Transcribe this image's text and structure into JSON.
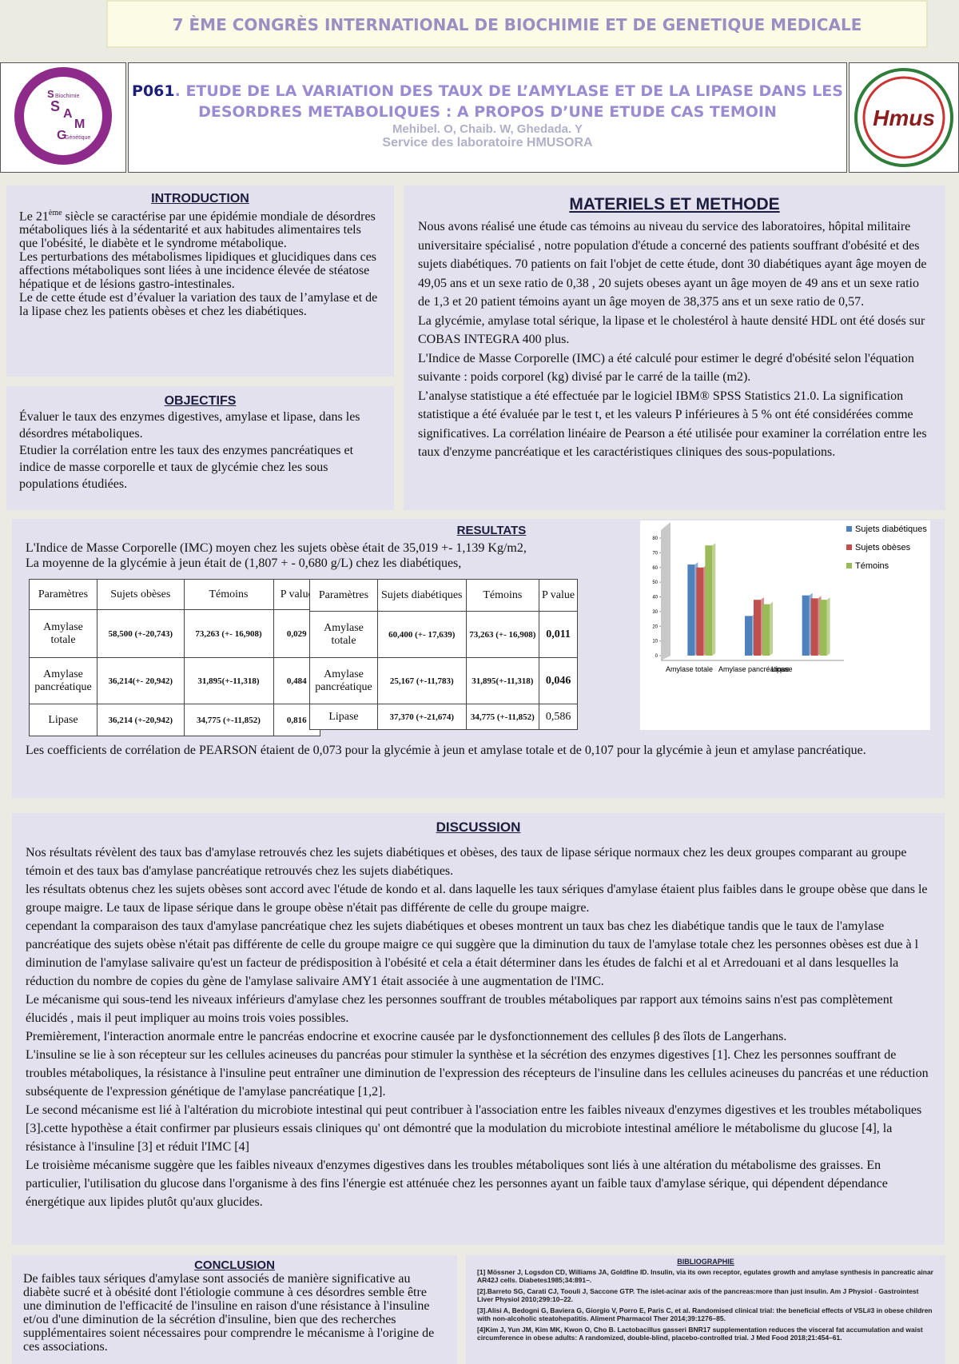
{
  "banner": "7 ÈME CONGRÈS INTERNATIONAL DE BIOCHIMIE ET DE GENETIQUE MEDICALE",
  "header": {
    "code": "P061",
    "title_line1": ". ETUDE DE LA VARIATION DES  TAUX DE L’AMYLASE ET DE LA LIPASE  DANS LES",
    "title_line2": "DESORDRES METABOLIQUES : A PROPOS D’UNE ETUDE CAS TEMOIN",
    "authors": "Mehibel. O, Chaib. W, Ghedada. Y",
    "affiliation": "Service des laboratoire HMUSORA"
  },
  "left_logo": {
    "letters": [
      "S",
      "A",
      "M",
      "G"
    ],
    "words": [
      "Biochimie",
      "Génétique"
    ]
  },
  "right_logo": "Hmus",
  "introduction": {
    "title": "INTRODUCTION",
    "first": {
      "before": "Le 21",
      "sup": "ème",
      "after": "  siècle se caractérise par une épidémie mondiale de désordres métaboliques liés à la sédentarité et aux habitudes alimentaires tels  que l'obésité, le diabète et le syndrome métabolique."
    },
    "paragraphs": [
      "Les perturbations des métabolismes lipidiques et glucidiques dans ces affections métaboliques sont liées à une incidence élevée de stéatose hépatique et de lésions gastro-intestinales.",
      "Le de cette étude est d’évaluer  la variation des taux de l’amylase et de la lipase chez les patients obèses et chez les diabétiques."
    ]
  },
  "objectifs": {
    "title": "OBJECTIFS",
    "paragraphs": [
      "Évaluer le taux des enzymes digestives, amylase et lipase, dans les désordres métaboliques.",
      "Etudier  la corrélation entre les taux des enzymes pancréatiques et indice de masse corporelle et taux de glycémie chez les sous populations étudiées."
    ]
  },
  "materiels": {
    "title": "MATERIELS ET METHODE",
    "paragraphs": [
      " Nous avons réalisé une étude cas témoins au niveau du service des laboratoires, hôpital militaire universitaire spécialisé , notre population d'étude a concerné des patients souffrant d'obésité et des sujets diabétiques. 70 patients on fait l'objet de cette étude, dont 30 diabétiques ayant  âge moyen de 49,05  ans  et un sexe ratio de 0,38 , 20 sujets obeses ayant un âge moyen de 49 ans et un sexe ratio de 1,3 et 20 patient témoins ayant un âge moyen de 38,375 ans et un sexe ratio de 0,57.",
      "La glycémie, amylase total sérique, la lipase et le cholestérol à haute densité HDL ont été dosés sur COBAS INTEGRA 400 plus.",
      "L'Indice de Masse Corporelle (IMC)  a été calculé pour estimer le degré d'obésité selon l'équation suivante : poids corporel (kg) divisé par le carré de la taille (m2).",
      "L’analyse statistique a été effectuée par le logiciel IBM® SPSS Statistics 21.0. La signification statistique a été évaluée par le test t, et les valeurs P inférieures à 5 % ont été considérées comme significatives. La corrélation linéaire de Pearson a été utilisée pour examiner la corrélation entre les taux d'enzyme pancréatique et les caractéristiques cliniques des sous-populations."
    ]
  },
  "resultats": {
    "title": "RESULTATS",
    "lines": [
      "L'Indice de Masse Corporelle (IMC) moyen chez les sujets obèse était de  35,019 +- 1,139 Kg/m2,",
      "La moyenne de la  glycémie à jeun était de (1,807 + - 0,680 g/L) chez les diabétiques,"
    ],
    "tables": [
      {
        "header": [
          "Paramètres",
          "Sujets obèses",
          "Témoins",
          "P value"
        ],
        "rows": [
          [
            "Amylase totale",
            "58,500 (+-20,743)",
            "73,263 (+- 16,908)",
            "0,029"
          ],
          [
            "Amylase pancréatique",
            "36,214(+- 20,942)",
            "31,895(+-11,318)",
            "0,484"
          ],
          [
            "Lipase",
            "36,214 (+-20,942)",
            "34,775 (+-11,852)",
            "0,816"
          ]
        ]
      },
      {
        "header": [
          "Paramètres",
          "Sujets diabétiques",
          "Témoins",
          "P value"
        ],
        "rows": [
          [
            "Amylase totale",
            "60,400 (+- 17,639)",
            "73,263 (+- 16,908)",
            "0,011"
          ],
          [
            "Amylase pancréatique",
            "25,167 (+-11,783)",
            "31,895(+-11,318)",
            "0,046"
          ],
          [
            "Lipase",
            "37,370 (+-21,674)",
            "34,775 (+-11,852)",
            "0,586"
          ]
        ]
      }
    ],
    "footer": "Les coefficients de corrélation de PEARSON étaient de 0,073 pour la glycémie à jeun et amylase totale et de 0,107 pour la glycémie à jeun et amylase pancréatique."
  },
  "chart_data": {
    "type": "bar",
    "categories": [
      "Amylase totale",
      "Amylase pancréatique",
      "Lipase"
    ],
    "series": [
      {
        "name": "Sujets diabétiques",
        "color": "#4f81bd",
        "values": [
          62,
          27,
          41
        ]
      },
      {
        "name": "Sujets obèses",
        "color": "#c0504d",
        "values": [
          60,
          38,
          39
        ]
      },
      {
        "name": "Témoins",
        "color": "#9bbb59",
        "values": [
          75,
          35,
          38
        ]
      }
    ],
    "ylim": [
      0,
      80
    ],
    "yticks": [
      0,
      10,
      20,
      30,
      40,
      50,
      60,
      70,
      80
    ],
    "legend": "right"
  },
  "discussion": {
    "title": "DISCUSSION ",
    "paragraphs": [
      "Nos résultats révèlent des taux bas d'amylase retrouvés chez les sujets diabétiques et obèses, des taux de lipase sérique normaux chez les deux groupes comparant au groupe témoin et des taux bas d'amylase pancréatique retrouvés chez les sujets diabétiques.",
      "les résultats obtenus chez les sujets obèses  sont accord avec l'étude de kondo et al.   dans laquelle les taux sériques d'amylase étaient plus faibles dans le groupe obèse que dans le groupe maigre. Le taux de lipase sérique dans le groupe obèse n'était pas différente de celle du groupe maigre.",
      "cependant la comparaison des taux d'amylase pancréatique chez les sujets diabétiques et obeses montrent un taux bas chez les diabétique tandis que le taux de l'amylase pancréatique des sujets obèse n'était pas différente de celle du groupe maigre ce qui suggère que  la diminution du taux de l'amylase totale chez les personnes obèses est due à l diminution de l'amylase salivaire qu'est un facteur de prédisposition à l'obésité et cela a était déterminer dans les études de falchi et al et Arredouani et al dans lesquelles la réduction du nombre de copies du gène de l'amylase salivaire AMY1 était associée à une augmentation de l'IMC.",
      "Le mécanisme qui sous-tend les niveaux inférieurs d'amylase chez les personnes souffrant de troubles métaboliques par rapport aux témoins sains n'est pas complètement élucidés , mais il peut impliquer au moins trois voies possibles.",
      "Premièrement, l'interaction anormale entre le pancréas endocrine et exocrine causée par le dysfonctionnement des cellules β des îlots de Langerhans.",
      "L'insuline se lie à son récepteur sur les cellules acineuses du pancréas pour stimuler la synthèse et la sécrétion des enzymes digestives [1].  Chez les personnes souffrant de troubles métaboliques, la résistance à l'insuline peut entraîner une diminution de l'expression des récepteurs de l'insuline dans les cellules acineuses du pancréas et une réduction subséquente de l'expression génétique de l'amylase pancréatique [1,2].",
      "Le second mécanisme est lié à l'altération du microbiote intestinal qui peut contribuer à l'association entre les faibles niveaux d'enzymes digestives et les troubles métaboliques [3].cette hypothèse a était confirmer par  plusieurs essais cliniques qu' ont démontré que la modulation du microbiote intestinal améliore le métabolisme du glucose [4], la résistance à l'insuline [3] et réduit l'IMC [4]",
      "Le troisième mécanisme suggère que les faibles niveaux d'enzymes digestives dans les troubles métaboliques sont liés à une altération du métabolisme des graisses. En particulier, l'utilisation du glucose dans l'organisme à des fins l'énergie est atténuée chez les personnes ayant un faible taux d'amylase sérique, qui dépendent dépendance énergétique aux lipides plutôt qu'aux glucides."
    ]
  },
  "conclusion": {
    "title": "CONCLUSION",
    "text": "De faibles taux sériques d'amylase sont associés de manière significative au diabète sucré et à obésité dont l'étiologie commune à ces désordres semble être une diminution de l'efficacité de l'insuline en raison d'une résistance à l'insuline et/ou d'une diminution de la sécrétion d'insuline, bien que des recherches supplémentaires soient nécessaires pour comprendre le mécanisme à l'origine de ces associations."
  },
  "bibliographie": {
    "title": "BIBLIOGRAPHIE",
    "entries": [
      "[1] Mössner J, Logsdon CD, Williams JA, Goldfine ID. Insulin, via its own receptor, egulates growth and amylase synthesis in pancreatic ainar AR42J cells. Diabetes1985;34:891–.",
      "[2].Barreto SG, Carati CJ, Toouli J, Saccone GTP. The islet-acinar axis of the pancreas:more than just insulin. Am J Physiol - Gastrointest Liver Physiol 2010;299:10–22.",
      "[3].Alisi A, Bedogni G, Baviera G, Giorgio V, Porro E, Paris C, et al. Randomised clinical trial: the beneficial effects of VSL#3 in obese children with non-alcoholic steatohepatitis. Aliment Pharmacol Ther 2014;39:1276–85.",
      "[4]Kim J, Yun JM, Kim MK, Kwon O, Cho B. Lactobacillus gasseri BNR17 supplementation reduces the visceral fat accumulation and waist circumference in obese adults: A randomized, double-blind, placebo-controlled trial. J Med Food 2018;21:454–61."
    ]
  }
}
